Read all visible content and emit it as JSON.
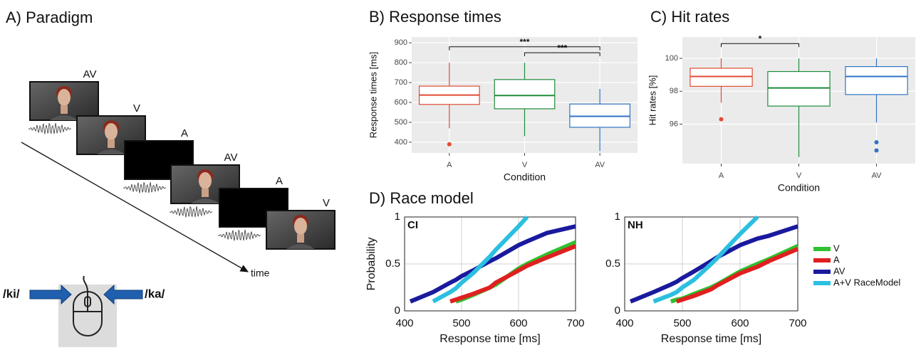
{
  "panel_a": {
    "title": "A) Paradigm",
    "frame_labels": [
      "AV",
      "V",
      "A",
      "AV",
      "A",
      "V"
    ],
    "time_label": "time",
    "left_response": "/ki/",
    "right_response": "/ka/"
  },
  "chart_data": [
    {
      "type": "box",
      "title": "B) Response times",
      "xlabel": "Condition",
      "ylabel": "Response times [ms]",
      "categories": [
        "A",
        "V",
        "AV"
      ],
      "colors": [
        "#e24a33",
        "#1e8a3a",
        "#2f73c6"
      ],
      "boxes": [
        {
          "low": 470,
          "q1": 590,
          "median": 637,
          "q3": 682,
          "high": 800,
          "outliers": [
            390
          ]
        },
        {
          "low": 430,
          "q1": 568,
          "median": 635,
          "q3": 715,
          "high": 800,
          "outliers": []
        },
        {
          "low": 355,
          "q1": 475,
          "median": 530,
          "q3": 592,
          "high": 668,
          "outliers": []
        }
      ],
      "ylim": [
        346,
        929
      ],
      "yticks": [
        400,
        500,
        600,
        700,
        800,
        900
      ],
      "grid": true,
      "significance": [
        {
          "from": "A",
          "to": "AV",
          "y": 880,
          "label": "***"
        },
        {
          "from": "V",
          "to": "AV",
          "y": 850,
          "label": "***"
        }
      ]
    },
    {
      "type": "box",
      "title": "C) Hit rates",
      "xlabel": "Condition",
      "ylabel": "Hit rates [%]",
      "categories": [
        "A",
        "V",
        "AV"
      ],
      "colors": [
        "#e24a33",
        "#1e8a3a",
        "#2f73c6"
      ],
      "boxes": [
        {
          "low": 97.3,
          "q1": 98.3,
          "median": 98.9,
          "q3": 99.4,
          "high": 100,
          "outliers": [
            96.3
          ]
        },
        {
          "low": 94.0,
          "q1": 97.1,
          "median": 98.2,
          "q3": 99.2,
          "high": 100,
          "outliers": []
        },
        {
          "low": 96.1,
          "q1": 97.8,
          "median": 98.9,
          "q3": 99.5,
          "high": 100,
          "outliers": [
            94.9,
            94.4
          ]
        }
      ],
      "ylim": [
        93.6,
        101.3
      ],
      "yticks": [
        96,
        98,
        100
      ],
      "grid": true,
      "significance": [
        {
          "from": "A",
          "to": "V",
          "y": 100.9,
          "label": "*"
        }
      ]
    },
    {
      "type": "line",
      "title": "D) Race model",
      "label": "CI",
      "xlabel": "Response time [ms]",
      "ylabel": "Probability",
      "x": [
        410,
        450,
        480,
        490,
        500,
        520,
        550,
        560,
        600,
        615,
        650,
        700
      ],
      "series": [
        {
          "name": "V",
          "color": "#2ec22e",
          "values": [
            null,
            null,
            null,
            0.1,
            0.12,
            0.17,
            0.25,
            0.28,
            0.45,
            0.5,
            0.6,
            0.73
          ]
        },
        {
          "name": "A",
          "color": "#e02020",
          "values": [
            null,
            null,
            0.1,
            0.12,
            0.14,
            0.18,
            0.25,
            0.3,
            0.43,
            0.48,
            0.57,
            0.69
          ]
        },
        {
          "name": "AV",
          "color": "#1a1a9e",
          "values": [
            0.1,
            0.2,
            0.3,
            0.33,
            0.37,
            0.43,
            0.53,
            0.56,
            0.7,
            0.74,
            0.83,
            0.9
          ]
        },
        {
          "name": "A+V RaceModel",
          "color": "#2bbfe0",
          "values": [
            null,
            0.1,
            0.2,
            0.24,
            0.3,
            0.4,
            0.58,
            0.65,
            0.9,
            1.0,
            null,
            null
          ]
        }
      ],
      "xlim": [
        400,
        700
      ],
      "xticks": [
        400,
        500,
        600,
        700
      ],
      "ylim": [
        0,
        1
      ],
      "yticks": [
        0,
        0.5,
        1
      ],
      "grid": true
    },
    {
      "type": "line",
      "label": "NH",
      "xlabel": "Response time [ms]",
      "legend": "right",
      "x": [
        410,
        450,
        480,
        490,
        500,
        520,
        550,
        560,
        600,
        630,
        650,
        700
      ],
      "series": [
        {
          "name": "V",
          "color": "#2ec22e",
          "values": [
            null,
            null,
            0.1,
            0.12,
            0.13,
            0.18,
            0.25,
            0.28,
            0.42,
            0.5,
            0.55,
            0.69
          ]
        },
        {
          "name": "A",
          "color": "#e02020",
          "values": [
            null,
            null,
            null,
            0.1,
            0.12,
            0.16,
            0.23,
            0.27,
            0.4,
            0.47,
            0.53,
            0.66
          ]
        },
        {
          "name": "AV",
          "color": "#1a1a9e",
          "values": [
            0.1,
            0.2,
            0.28,
            0.31,
            0.35,
            0.42,
            0.53,
            0.57,
            0.7,
            0.77,
            0.8,
            0.9
          ]
        },
        {
          "name": "A+V RaceModel",
          "color": "#2bbfe0",
          "values": [
            null,
            0.1,
            0.17,
            0.2,
            0.25,
            0.33,
            0.5,
            0.56,
            0.82,
            1.0,
            null,
            null
          ]
        }
      ],
      "xlim": [
        400,
        700
      ],
      "xticks": [
        400,
        500,
        600,
        700
      ],
      "ylim": [
        0,
        1
      ],
      "yticks": [
        0,
        0.5,
        1
      ],
      "grid": true
    }
  ]
}
